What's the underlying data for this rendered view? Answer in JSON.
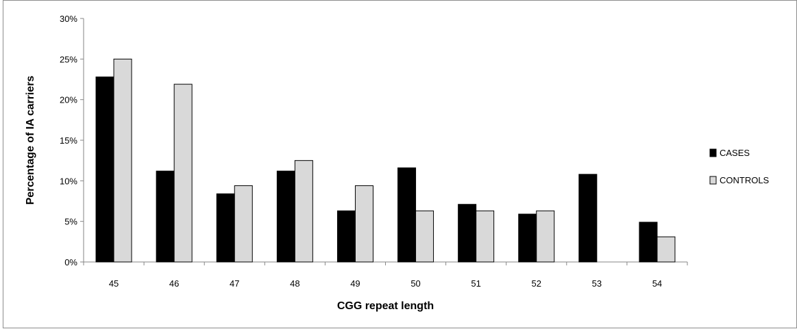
{
  "chart_data": {
    "type": "bar",
    "title": "",
    "xlabel": "CGG repeat length",
    "ylabel": "Percentage of IA carriers",
    "categories": [
      "45",
      "46",
      "47",
      "48",
      "49",
      "50",
      "51",
      "52",
      "53",
      "54"
    ],
    "series": [
      {
        "name": "CASES",
        "color": "#000000",
        "values": [
          22.8,
          11.2,
          8.4,
          11.2,
          6.3,
          11.6,
          7.1,
          5.9,
          10.8,
          4.9
        ]
      },
      {
        "name": "CONTROLS",
        "color": "#d9d9d9",
        "values": [
          25.0,
          21.9,
          9.4,
          12.5,
          9.4,
          6.3,
          6.3,
          6.3,
          0,
          3.1
        ]
      }
    ],
    "ylim": [
      0,
      30
    ],
    "yticks": [
      0,
      5,
      10,
      15,
      20,
      25,
      30
    ],
    "ytick_labels": [
      "0%",
      "5%",
      "10%",
      "15%",
      "20%",
      "25%",
      "30%"
    ],
    "grid": false,
    "legend_position": "right"
  }
}
